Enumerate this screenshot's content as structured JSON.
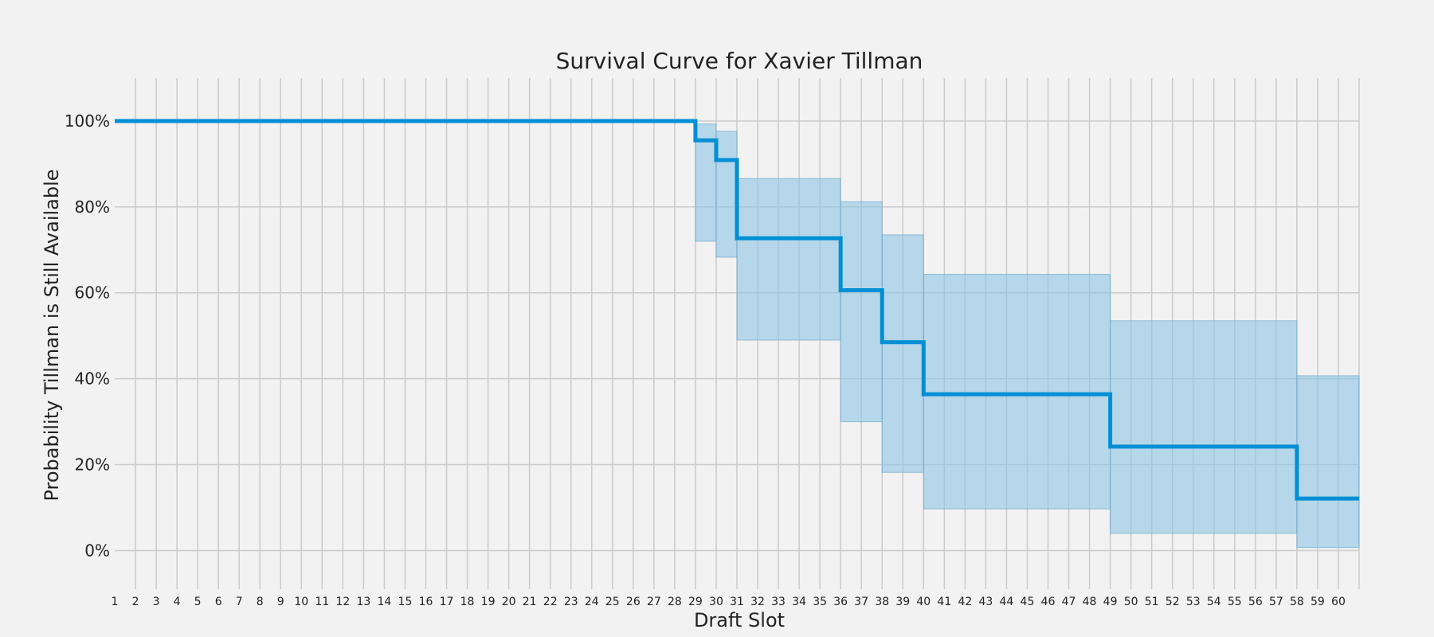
{
  "chart_data": {
    "type": "line",
    "title": "Survival Curve for Xavier Tillman",
    "xlabel": "Draft Slot",
    "ylabel": "Probability Tillman is Still Available",
    "xlim": [
      1,
      61
    ],
    "ylim": [
      -0.09,
      1.1
    ],
    "x_ticks": [
      1,
      2,
      3,
      4,
      5,
      6,
      7,
      8,
      9,
      10,
      11,
      12,
      13,
      14,
      15,
      16,
      17,
      18,
      19,
      20,
      21,
      22,
      23,
      24,
      25,
      26,
      27,
      28,
      29,
      30,
      31,
      32,
      33,
      34,
      35,
      36,
      37,
      38,
      39,
      40,
      41,
      42,
      43,
      44,
      45,
      46,
      47,
      48,
      49,
      50,
      51,
      52,
      53,
      54,
      55,
      56,
      57,
      58,
      59,
      60
    ],
    "y_ticks": [
      0,
      0.2,
      0.4,
      0.6,
      0.8,
      1.0
    ],
    "y_tick_labels": [
      "0%",
      "20%",
      "40%",
      "60%",
      "80%",
      "100%"
    ],
    "grid": true,
    "line_color": "#008fd5",
    "band_color": "#8cc4e3",
    "steps": [
      {
        "x": 1,
        "survival": 1.0,
        "ci_lower": 1.0,
        "ci_upper": 1.0
      },
      {
        "x": 29,
        "survival": 0.955,
        "ci_lower": 0.72,
        "ci_upper": 0.993
      },
      {
        "x": 30,
        "survival": 0.909,
        "ci_lower": 0.683,
        "ci_upper": 0.976
      },
      {
        "x": 31,
        "survival": 0.727,
        "ci_lower": 0.49,
        "ci_upper": 0.866
      },
      {
        "x": 36,
        "survival": 0.606,
        "ci_lower": 0.3,
        "ci_upper": 0.812
      },
      {
        "x": 38,
        "survival": 0.485,
        "ci_lower": 0.182,
        "ci_upper": 0.735
      },
      {
        "x": 40,
        "survival": 0.364,
        "ci_lower": 0.097,
        "ci_upper": 0.643
      },
      {
        "x": 49,
        "survival": 0.242,
        "ci_lower": 0.04,
        "ci_upper": 0.535
      },
      {
        "x": 58,
        "survival": 0.121,
        "ci_lower": 0.007,
        "ci_upper": 0.407
      }
    ],
    "x_end": 61
  }
}
